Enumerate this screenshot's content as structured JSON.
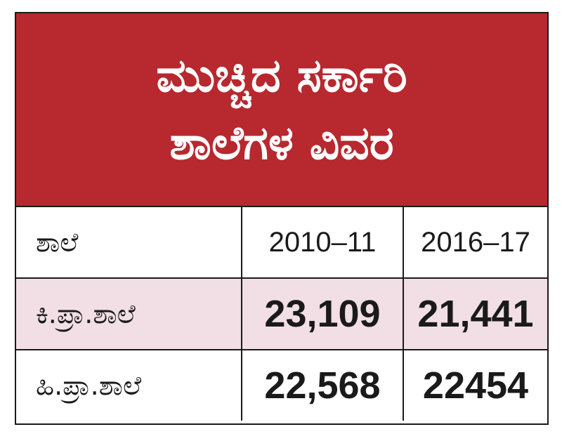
{
  "title": [
    "ಮುಚ್ಚಿದ ಸರ್ಕಾರಿ",
    "ಶಾಲೆಗಳ ವಿವರ"
  ],
  "table": {
    "header": [
      "ಶಾಲೆ",
      "2010–11",
      "2016–17"
    ],
    "rows": [
      [
        "ಕಿ.ಪ್ರಾ.ಶಾಲೆ",
        "23,109",
        "21,441"
      ],
      [
        "ಹಿ.ಪ್ರಾ.ಶಾಲೆ",
        "22,568",
        "22454"
      ]
    ]
  }
}
